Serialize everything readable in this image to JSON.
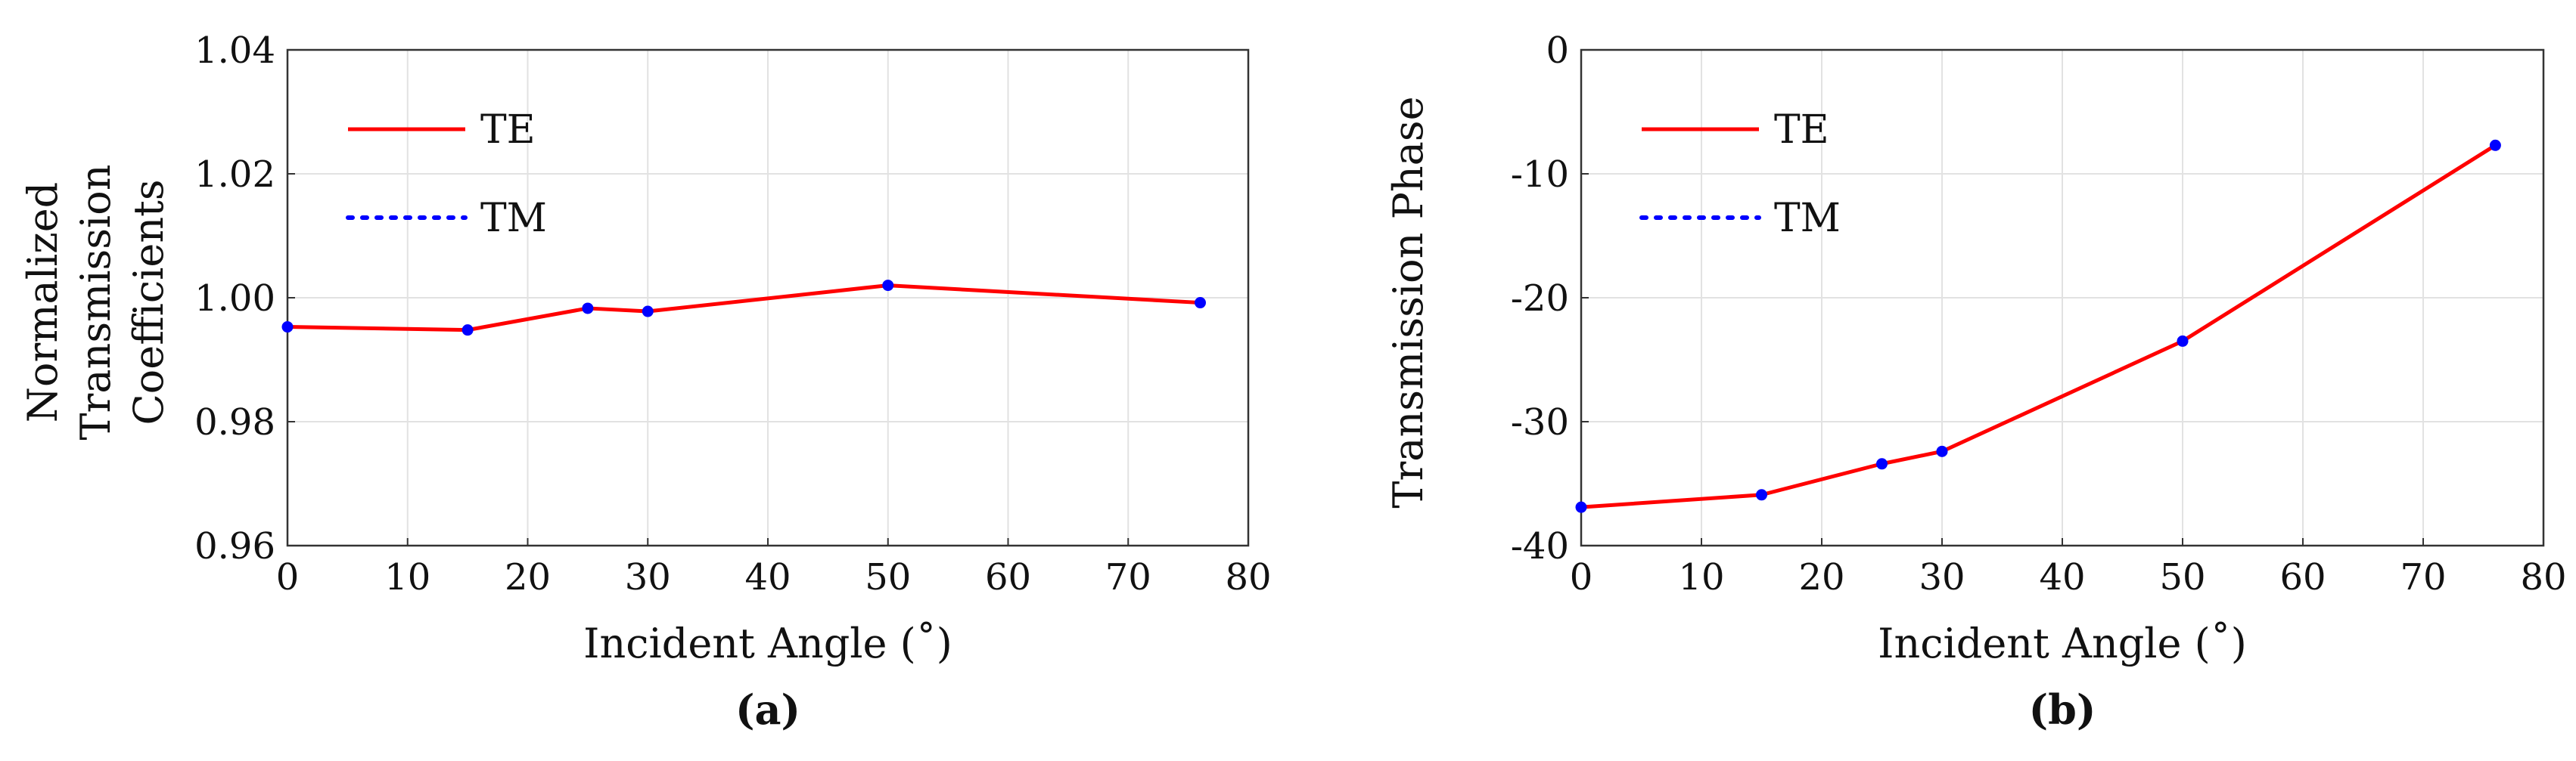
{
  "chart_data": [
    {
      "type": "line",
      "panel_label": "(a)",
      "xlabel": "Incident Angle (˚)",
      "ylabel_lines": [
        "Normalized",
        "Transmission",
        "Coefficients"
      ],
      "xlim": [
        0,
        80
      ],
      "ylim": [
        0.96,
        1.04
      ],
      "xticks": [
        0,
        10,
        20,
        30,
        40,
        50,
        60,
        70,
        80
      ],
      "yticks": [
        0.96,
        0.98,
        1.0,
        1.02,
        1.04
      ],
      "ytick_labels": [
        "0.96",
        "0.98",
        "1.00",
        "1.02",
        "1.04"
      ],
      "grid": true,
      "legend_position": "top-left",
      "x": [
        0,
        15,
        25,
        30,
        50,
        76
      ],
      "series": [
        {
          "name": "TE",
          "style": "solid",
          "color": "#ff0000",
          "values": [
            0.9953,
            0.9948,
            0.9983,
            0.9978,
            1.002,
            0.9992
          ]
        },
        {
          "name": "TM",
          "style": "dotted",
          "color": "#0000ff",
          "values": [
            0.9953,
            0.9948,
            0.9983,
            0.9978,
            1.002,
            0.9992
          ]
        }
      ]
    },
    {
      "type": "line",
      "panel_label": "(b)",
      "xlabel": "Incident Angle (˚)",
      "ylabel_lines": [
        "Transmission Phase"
      ],
      "xlim": [
        0,
        80
      ],
      "ylim": [
        -40,
        0
      ],
      "xticks": [
        0,
        10,
        20,
        30,
        40,
        50,
        60,
        70,
        80
      ],
      "yticks": [
        -40,
        -30,
        -20,
        -10,
        0
      ],
      "ytick_labels": [
        "-40",
        "-30",
        "-20",
        "-10",
        "0"
      ],
      "grid": true,
      "legend_position": "top-left",
      "x": [
        0,
        15,
        25,
        30,
        50,
        76
      ],
      "series": [
        {
          "name": "TE",
          "style": "solid",
          "color": "#ff0000",
          "values": [
            -36.9,
            -35.9,
            -33.4,
            -32.4,
            -23.5,
            -7.7
          ]
        },
        {
          "name": "TM",
          "style": "dotted",
          "color": "#0000ff",
          "values": [
            -36.9,
            -35.9,
            -33.4,
            -32.4,
            -23.5,
            -7.7
          ]
        }
      ]
    }
  ]
}
